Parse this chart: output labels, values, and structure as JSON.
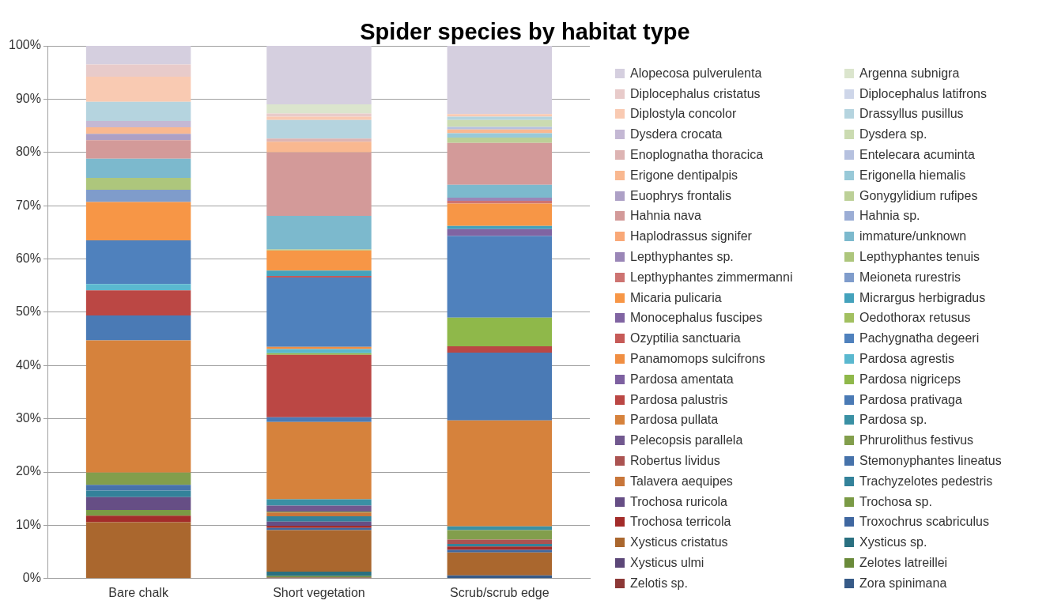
{
  "chart_data": {
    "type": "bar",
    "title": "Spider species by habitat type",
    "stacked": true,
    "categories": [
      "Bare chalk",
      "Short vegetation",
      "Scrub/scrub edge"
    ],
    "ylim": [
      0,
      100
    ],
    "yticks": [
      {
        "value": 0,
        "label": "0%"
      },
      {
        "value": 10,
        "label": "10%"
      },
      {
        "value": 20,
        "label": "20%"
      },
      {
        "value": 30,
        "label": "30%"
      },
      {
        "value": 40,
        "label": "40%"
      },
      {
        "value": 50,
        "label": "50%"
      },
      {
        "value": 60,
        "label": "60%"
      },
      {
        "value": 70,
        "label": "70%"
      },
      {
        "value": 80,
        "label": "80%"
      },
      {
        "value": 90,
        "label": "90%"
      },
      {
        "value": 100,
        "label": "100%"
      }
    ],
    "grid": "y",
    "legend": "right",
    "series": [
      {
        "name": "Zora spinimana",
        "color": "#375a87",
        "values": [
          0,
          0,
          0.6
        ]
      },
      {
        "name": "Zelotis sp.",
        "color": "#8c3836",
        "values": [
          0,
          0.2,
          0
        ]
      },
      {
        "name": "Zelotes latreillei",
        "color": "#6a8a3a",
        "values": [
          0,
          0.3,
          0
        ]
      },
      {
        "name": "Xysticus ulmi",
        "color": "#5c4778",
        "values": [
          0,
          0,
          0
        ]
      },
      {
        "name": "Xysticus sp.",
        "color": "#2a7080",
        "values": [
          0,
          0.8,
          0
        ]
      },
      {
        "name": "Xysticus cristatus",
        "color": "#aa672e",
        "values": [
          10.6,
          7.8,
          4.3
        ]
      },
      {
        "name": "Troxochrus scabriculus",
        "color": "#3f67a0",
        "values": [
          0,
          0.4,
          0.5
        ]
      },
      {
        "name": "Trochosa terricola",
        "color": "#a32c2a",
        "values": [
          1.2,
          0.4,
          0.6
        ]
      },
      {
        "name": "Trochosa sp.",
        "color": "#7a9a45",
        "values": [
          1.1,
          0,
          0
        ]
      },
      {
        "name": "Trochosa ruricola",
        "color": "#664e85",
        "values": [
          2.4,
          0.8,
          0
        ]
      },
      {
        "name": "Trachyzelotes pedestris",
        "color": "#33829a",
        "values": [
          1.2,
          1.0,
          0.5
        ]
      },
      {
        "name": "Talavera aequipes",
        "color": "#c8763a",
        "values": [
          0,
          0.7,
          0
        ]
      },
      {
        "name": "Stemonyphantes lineatus",
        "color": "#4672aa",
        "values": [
          1.1,
          0,
          0
        ]
      },
      {
        "name": "Robertus lividus",
        "color": "#ab5351",
        "values": [
          0,
          0,
          0.8
        ]
      },
      {
        "name": "Phrurolithus festivus",
        "color": "#829e4c",
        "values": [
          2.3,
          0.2,
          1.8
        ]
      },
      {
        "name": "Pelecopsis parallela",
        "color": "#71588f",
        "values": [
          0,
          1.1,
          0
        ]
      },
      {
        "name": "Pardosa sp.",
        "color": "#3a90a4",
        "values": [
          0,
          1.2,
          0.7
        ]
      },
      {
        "name": "Pardosa pullata",
        "color": "#d6823c",
        "values": [
          24.8,
          14.5,
          19.9
        ]
      },
      {
        "name": "Pardosa prativaga",
        "color": "#4a7ab5",
        "values": [
          4.7,
          0.9,
          12.7
        ]
      },
      {
        "name": "Pardosa palustris",
        "color": "#bb4744",
        "values": [
          4.7,
          11.7,
          1.2
        ]
      },
      {
        "name": "Pardosa nigriceps",
        "color": "#8fb84a",
        "values": [
          0,
          0.3,
          5.4
        ]
      },
      {
        "name": "Pardosa amentata",
        "color": "#7d60a0",
        "values": [
          0,
          0,
          0
        ]
      },
      {
        "name": "Pardosa agrestis",
        "color": "#5ab8cf",
        "values": [
          1.2,
          0.8,
          0
        ]
      },
      {
        "name": "Panamomops sulcifrons",
        "color": "#f08e42",
        "values": [
          0,
          0.4,
          0
        ]
      },
      {
        "name": "Pachygnatha degeeri",
        "color": "#4f81bd",
        "values": [
          8.2,
          13.0,
          15.3
        ]
      },
      {
        "name": "Ozyptilia sanctuaria",
        "color": "#c65a57",
        "values": [
          0,
          0.3,
          0
        ]
      },
      {
        "name": "Oedothorax retusus",
        "color": "#a2c060",
        "values": [
          0,
          0,
          0
        ]
      },
      {
        "name": "Monocephalus fuscipes",
        "color": "#8064a2",
        "values": [
          0,
          0,
          1.3
        ]
      },
      {
        "name": "Micrargus herbigradus",
        "color": "#44a2bc",
        "values": [
          0,
          1.0,
          0.6
        ]
      },
      {
        "name": "Micaria pulicaria",
        "color": "#f79646",
        "values": [
          7.2,
          3.8,
          4.2
        ]
      },
      {
        "name": "Meioneta rurestris",
        "color": "#7f9ccb",
        "values": [
          2.3,
          0,
          0
        ]
      },
      {
        "name": "Lepthyphantes zimmermanni",
        "color": "#cd7371",
        "values": [
          0,
          0,
          0.5
        ]
      },
      {
        "name": "Lepthyphantes tenuis",
        "color": "#adc67c",
        "values": [
          2.2,
          0.2,
          0
        ]
      },
      {
        "name": "Lepthyphantes sp.",
        "color": "#9a86b7",
        "values": [
          0,
          0,
          0.6
        ]
      },
      {
        "name": "immature/unknown",
        "color": "#7cb9cd",
        "values": [
          3.6,
          6.3,
          2.4
        ]
      },
      {
        "name": "Haplodrassus signifer",
        "color": "#f9a877",
        "values": [
          0,
          0,
          0
        ]
      },
      {
        "name": "Hahnia sp.",
        "color": "#9badd5",
        "values": [
          0,
          0,
          0
        ]
      },
      {
        "name": "Hahnia nava",
        "color": "#d39a99",
        "values": [
          3.5,
          11.9,
          7.9
        ]
      },
      {
        "name": "Gonygylidium rufipes",
        "color": "#bcd097",
        "values": [
          0,
          0,
          1.0
        ]
      },
      {
        "name": "Euophrys frontalis",
        "color": "#ada0c6",
        "values": [
          1.2,
          0,
          0
        ]
      },
      {
        "name": "Erigonella hiemalis",
        "color": "#98c9d8",
        "values": [
          0,
          0,
          0.8
        ]
      },
      {
        "name": "Erigone dentipalpis",
        "color": "#f9b890",
        "values": [
          1.2,
          2.0,
          0.7
        ]
      },
      {
        "name": "Entelecara acuminta",
        "color": "#b6c1df",
        "values": [
          0,
          0,
          0.5
        ]
      },
      {
        "name": "Enoplognatha thoracica",
        "color": "#ddb4b3",
        "values": [
          0,
          0.6,
          0
        ]
      },
      {
        "name": "Dysdera sp.",
        "color": "#cbdbb1",
        "values": [
          0,
          0,
          1.3
        ]
      },
      {
        "name": "Dysdera crocata",
        "color": "#c4b8d4",
        "values": [
          1.2,
          0,
          0
        ]
      },
      {
        "name": "Drassyllus pusillus",
        "color": "#b5d4df",
        "values": [
          3.6,
          3.5,
          0.6
        ]
      },
      {
        "name": "Diplostyla concolor",
        "color": "#f9cab2",
        "values": [
          4.7,
          0.6,
          0.5
        ]
      },
      {
        "name": "Diplocephalus latifrons",
        "color": "#ced6e9",
        "values": [
          0,
          0,
          0
        ]
      },
      {
        "name": "Diplocephalus cristatus",
        "color": "#e8cbca",
        "values": [
          2.3,
          0.6,
          0
        ]
      },
      {
        "name": "Argenna subnigra",
        "color": "#dbe5cd",
        "values": [
          0,
          1.7,
          0
        ]
      },
      {
        "name": "Alopecosa pulverulenta",
        "color": "#d5cfdf",
        "values": [
          3.5,
          11.0,
          12.8
        ]
      }
    ]
  }
}
